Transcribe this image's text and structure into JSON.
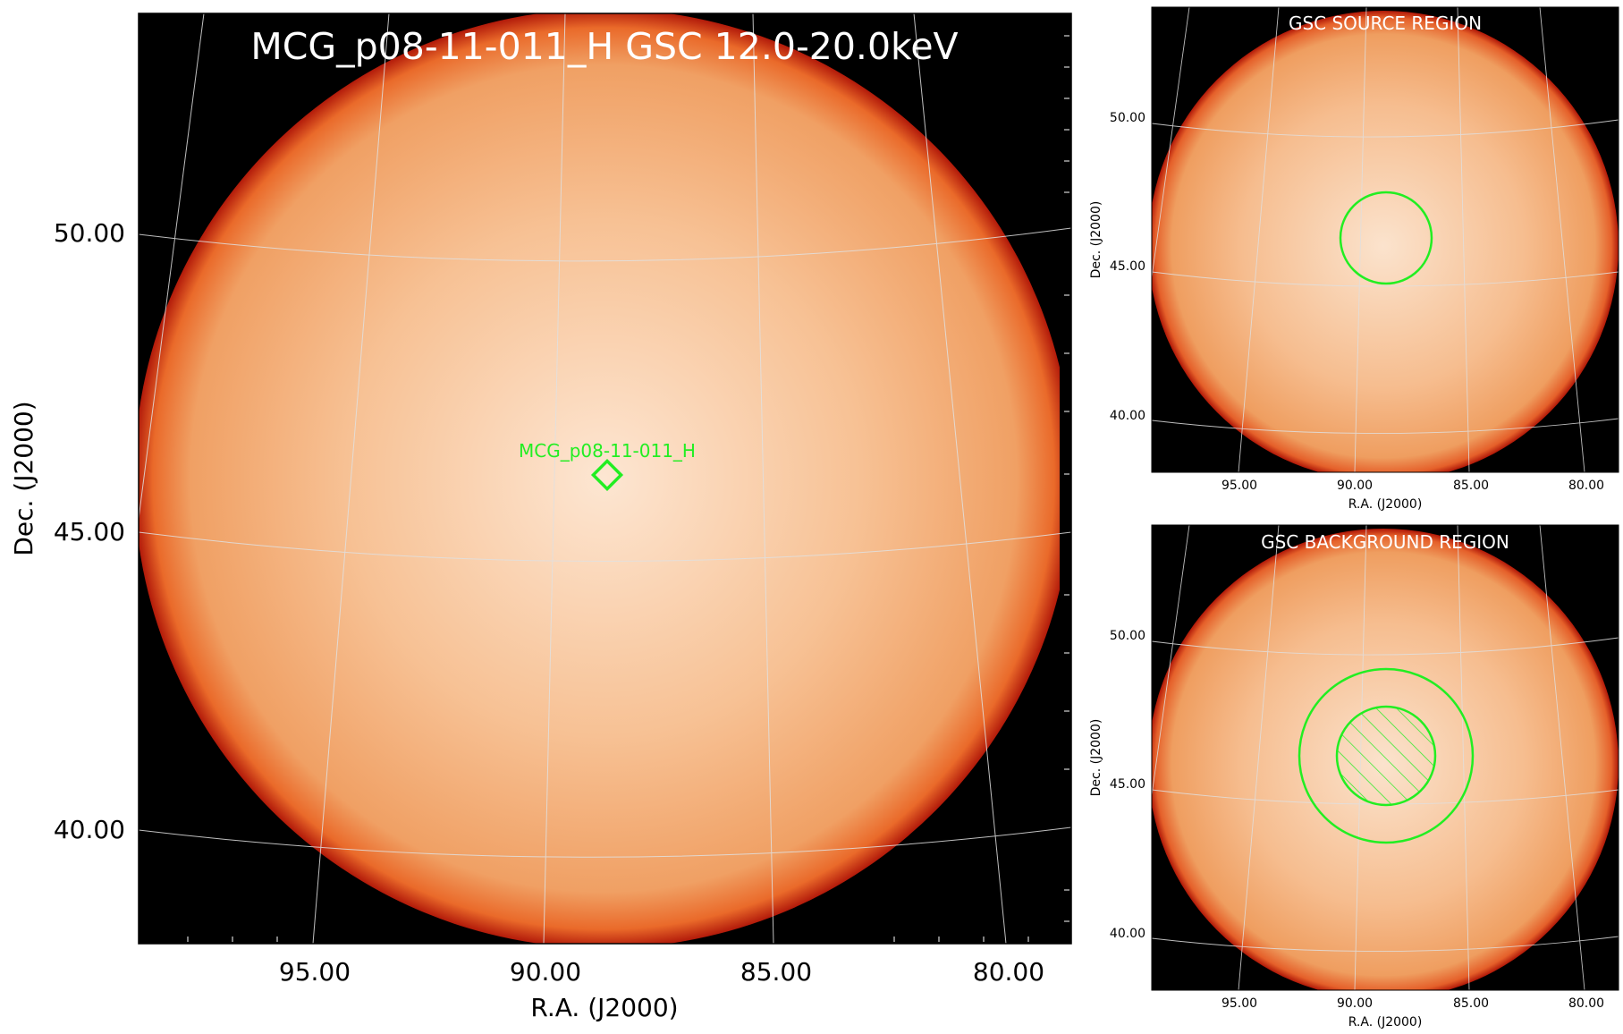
{
  "main": {
    "title": "MCG_p08-11-011_H GSC 12.0-20.0keV",
    "source_label": "MCG_p08-11-011_H",
    "xlabel": "R.A. (J2000)",
    "ylabel": "Dec. (J2000)",
    "xticks": [
      "95.00",
      "90.00",
      "85.00",
      "80.00"
    ],
    "yticks": [
      "50.00",
      "45.00",
      "40.00"
    ]
  },
  "source_panel": {
    "title": "GSC SOURCE REGION",
    "xlabel": "R.A. (J2000)",
    "ylabel": "Dec. (J2000)",
    "xticks": [
      "95.00",
      "90.00",
      "85.00",
      "80.00"
    ],
    "yticks": [
      "50.00",
      "45.00",
      "40.00"
    ]
  },
  "background_panel": {
    "title": "GSC BACKGROUND REGION",
    "xlabel": "R.A. (J2000)",
    "ylabel": "Dec. (J2000)",
    "xticks": [
      "95.00",
      "90.00",
      "85.00",
      "80.00"
    ],
    "yticks": [
      "50.00",
      "45.00",
      "40.00"
    ]
  },
  "colors": {
    "region": "#22ee22",
    "frame_bg": "#000000",
    "disc": "#f2a26a",
    "grid": "#dddddd",
    "title_text": "#ffffff"
  }
}
